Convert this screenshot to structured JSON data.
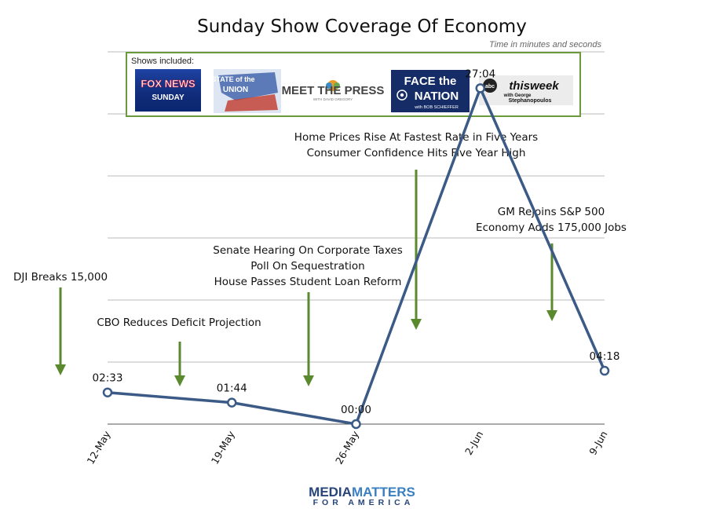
{
  "chart_data": {
    "type": "line",
    "title": "Sunday Show Coverage Of Economy",
    "subtitle": "Time in minutes and seconds",
    "categories": [
      "12-May",
      "19-May",
      "26-May",
      "2-Jun",
      "9-Jun"
    ],
    "values_seconds": [
      153,
      104,
      0,
      1624,
      258
    ],
    "data_labels": [
      "02:33",
      "01:44",
      "00:00",
      "27:04",
      "04:18"
    ],
    "ylim": [
      0,
      1800
    ],
    "grid": true,
    "series_color": "#3b5a86",
    "annotation_color": "#5b8a2e",
    "annotations": [
      {
        "lines": [
          "DJI Breaks 15,000"
        ]
      },
      {
        "lines": [
          "CBO Reduces Deficit Projection"
        ]
      },
      {
        "lines": [
          "Senate Hearing On Corporate Taxes",
          "Poll On Sequestration",
          "House Passes Student Loan Reform"
        ]
      },
      {
        "lines": [
          "Home Prices Rise At Fastest Rate in Five Years",
          "Consumer Confidence Hits Five Year High"
        ]
      },
      {
        "lines": [
          "GM Rejoins S&P 500",
          "Economy Adds 175,000 Jobs"
        ]
      }
    ]
  },
  "shows": {
    "label": "Shows included:",
    "logos": [
      {
        "name": "fox-news-sunday",
        "lines": [
          "FOX NEWS",
          "SUNDAY"
        ]
      },
      {
        "name": "state-of-the-union",
        "lines": [
          "STATE of the",
          "UNION"
        ]
      },
      {
        "name": "meet-the-press",
        "lines": [
          "MEET THE PRESS",
          "WITH DAVID GREGORY"
        ]
      },
      {
        "name": "face-the-nation",
        "lines": [
          "FACE the",
          "NATION",
          "with BOB SCHIEFFER"
        ]
      },
      {
        "name": "this-week",
        "lines": [
          "abc",
          "thisweek",
          "with George",
          "Stephanopoulos"
        ]
      }
    ]
  },
  "footer": {
    "brand_top": "MEDIAMATTERS",
    "brand_bottom": "FOR AMERICA"
  }
}
